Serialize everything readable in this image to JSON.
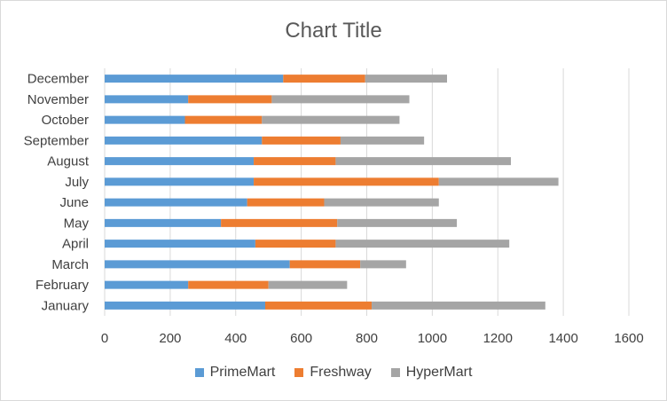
{
  "chart_data": {
    "type": "bar",
    "orientation": "horizontal",
    "stacked": true,
    "title": "Chart Title",
    "xlabel": "",
    "ylabel": "",
    "xlim": [
      0,
      1600
    ],
    "x_ticks": [
      0,
      200,
      400,
      600,
      800,
      1000,
      1200,
      1400,
      1600
    ],
    "grid": true,
    "legend_position": "bottom",
    "categories": [
      "January",
      "February",
      "March",
      "April",
      "May",
      "June",
      "July",
      "August",
      "September",
      "October",
      "November",
      "December"
    ],
    "series": [
      {
        "name": "PrimeMart",
        "color": "#5b9bd5",
        "values": [
          490,
          255,
          565,
          460,
          355,
          435,
          455,
          455,
          480,
          245,
          255,
          545
        ]
      },
      {
        "name": "Freshway",
        "color": "#ed7d31",
        "values": [
          325,
          245,
          215,
          245,
          355,
          235,
          565,
          250,
          240,
          235,
          255,
          250
        ]
      },
      {
        "name": "HyperMart",
        "color": "#a5a5a5",
        "values": [
          530,
          240,
          140,
          530,
          365,
          350,
          365,
          535,
          255,
          420,
          420,
          250
        ]
      }
    ]
  }
}
